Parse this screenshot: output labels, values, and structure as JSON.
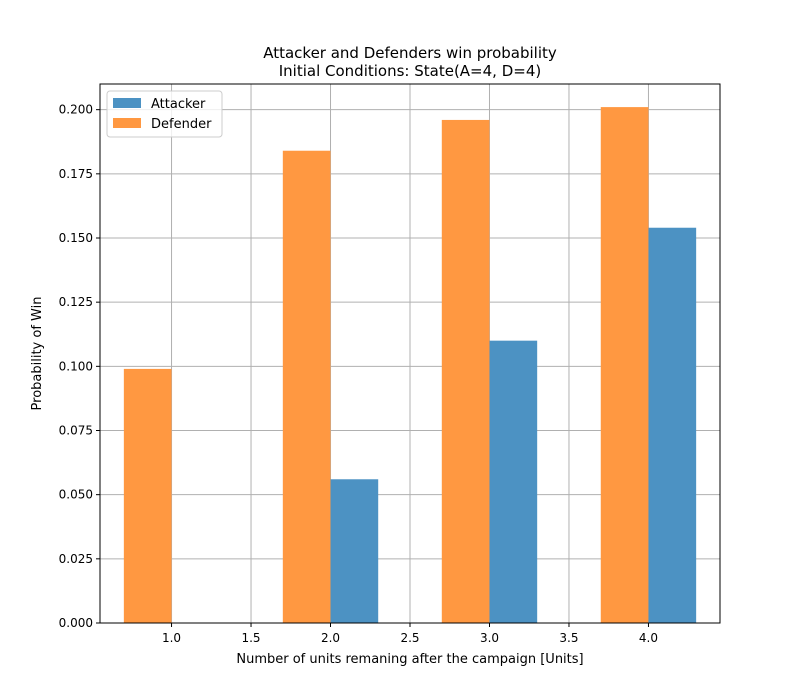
{
  "chart_data": {
    "type": "bar",
    "title": "Attacker and Defenders win probability",
    "subtitle": "Initial Conditions: State(A=4, D=4)",
    "xlabel": "Number of units remaning after the campaign [Units]",
    "ylabel": "Probability of Win",
    "xlim": [
      0.55,
      4.45
    ],
    "ylim": [
      0.0,
      0.21
    ],
    "x_ticks": [
      "1.0",
      "1.5",
      "2.0",
      "2.5",
      "3.0",
      "3.5",
      "4.0"
    ],
    "y_ticks": [
      "0.000",
      "0.025",
      "0.050",
      "0.075",
      "0.100",
      "0.125",
      "0.150",
      "0.175",
      "0.200"
    ],
    "grid": true,
    "legend_position": "top-left",
    "bar_width": 0.3,
    "series": [
      {
        "name": "Defender",
        "color": "#ff9841",
        "x": [
          1,
          2,
          3,
          4
        ],
        "offset": -0.15,
        "values": [
          0.099,
          0.184,
          0.196,
          0.201
        ]
      },
      {
        "name": "Attacker",
        "color": "#4c92c3",
        "x": [
          1,
          2,
          3,
          4
        ],
        "offset": 0.15,
        "values": [
          0.0,
          0.056,
          0.11,
          0.154
        ]
      }
    ]
  }
}
